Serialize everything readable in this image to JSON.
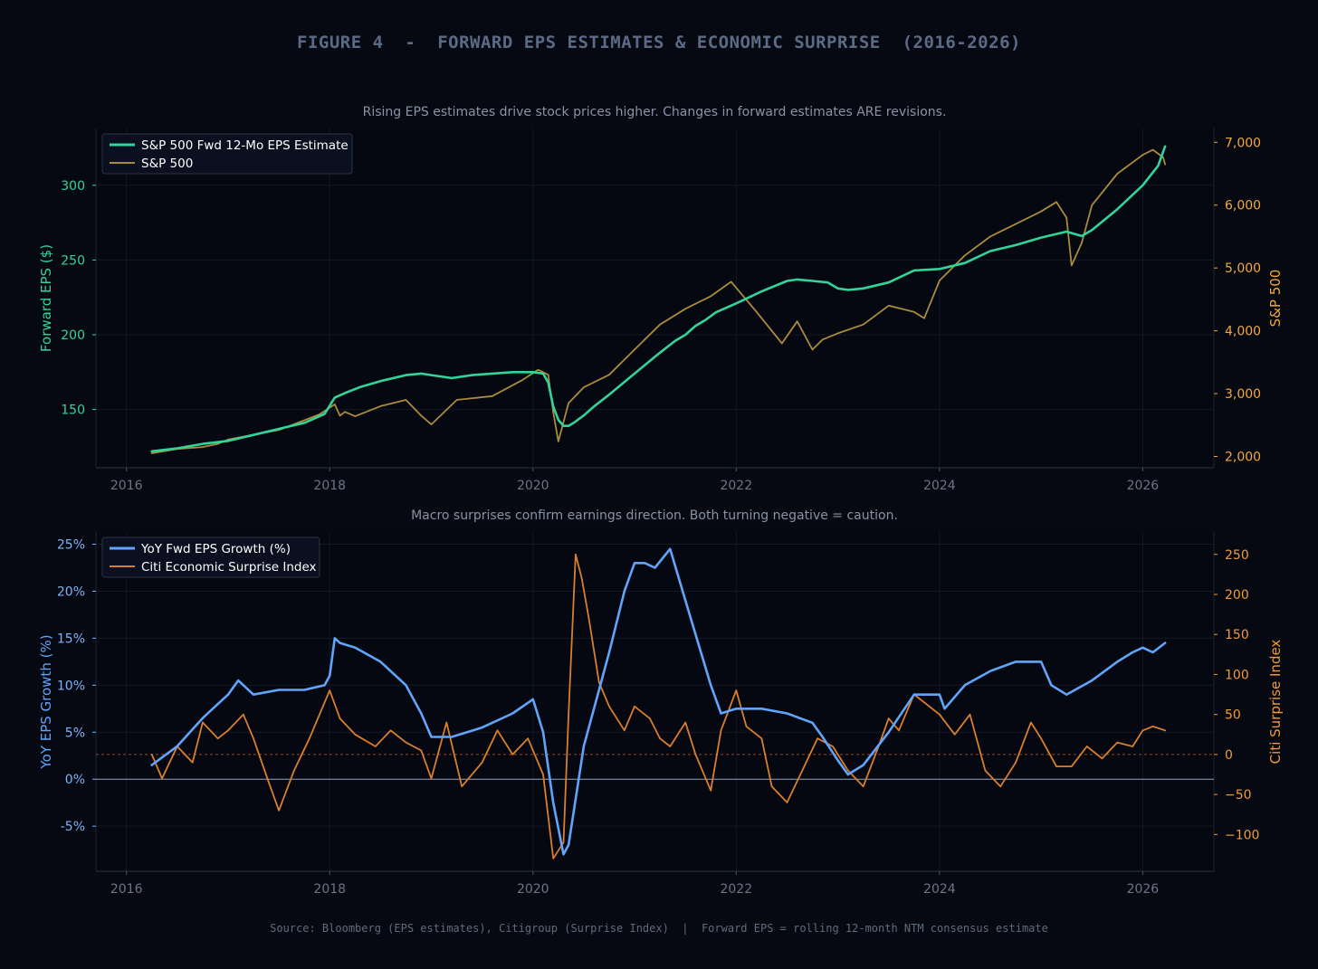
{
  "figure": {
    "title": "FIGURE 4  -  FORWARD EPS ESTIMATES & ECONOMIC SURPRISE  (2016-2026)",
    "footer": "Source: Bloomberg (EPS estimates), Citigroup (Surprise Index)  |  Forward EPS = rolling 12-month NTM consensus estimate",
    "background": "#060912"
  },
  "chart_data": [
    {
      "type": "line",
      "title": "Rising EPS estimates drive stock prices higher. Changes in forward estimates ARE revisions.",
      "xlabel": "",
      "xlim": [
        2015.7,
        2026.7
      ],
      "x_ticks": [
        2016,
        2018,
        2020,
        2022,
        2024,
        2026
      ],
      "x_tick_labels": [
        "2016",
        "2018",
        "2020",
        "2022",
        "2024",
        "2026"
      ],
      "ylabel_left": "Forward EPS ($)",
      "ylim_left": [
        111,
        338
      ],
      "y_ticks_left": [
        150,
        200,
        250,
        300
      ],
      "y_tick_labels_left": [
        "150",
        "200",
        "250",
        "300"
      ],
      "ylabel_right": "S&P 500",
      "ylim_right": [
        1820,
        7220
      ],
      "y_ticks_right": [
        2000,
        3000,
        4000,
        5000,
        6000,
        7000
      ],
      "y_tick_labels_right": [
        "2,000",
        "3,000",
        "4,000",
        "5,000",
        "6,000",
        "7,000"
      ],
      "legend_position": "top-left",
      "grid": true,
      "series": [
        {
          "name": "S&P 500 Fwd 12-Mo EPS Estimate",
          "axis": "left",
          "color": "#34d399",
          "x": [
            2016.25,
            2016.5,
            2016.75,
            2017.0,
            2017.25,
            2017.5,
            2017.75,
            2017.95,
            2018.05,
            2018.15,
            2018.3,
            2018.5,
            2018.75,
            2018.9,
            2019.0,
            2019.2,
            2019.4,
            2019.6,
            2019.8,
            2020.0,
            2020.1,
            2020.15,
            2020.2,
            2020.25,
            2020.3,
            2020.35,
            2020.4,
            2020.5,
            2020.6,
            2020.75,
            2021.0,
            2021.25,
            2021.4,
            2021.5,
            2021.6,
            2021.7,
            2021.8,
            2022.0,
            2022.25,
            2022.5,
            2022.6,
            2022.75,
            2022.9,
            2023.0,
            2023.1,
            2023.25,
            2023.5,
            2023.75,
            2024.0,
            2024.25,
            2024.5,
            2024.75,
            2025.0,
            2025.25,
            2025.4,
            2025.5,
            2025.75,
            2026.0,
            2026.15,
            2026.22
          ],
          "y": [
            122,
            124,
            127,
            129,
            133,
            137,
            141,
            147,
            158,
            161,
            165,
            169,
            173,
            174,
            173,
            171,
            173,
            174,
            175,
            175,
            174,
            168,
            152,
            143,
            139,
            139,
            141,
            146,
            152,
            160,
            174,
            188,
            196,
            200,
            206,
            210,
            215,
            221,
            229,
            236,
            237,
            236,
            235,
            231,
            230,
            231,
            235,
            243,
            244,
            248,
            256,
            260,
            265,
            269,
            266,
            270,
            284,
            300,
            313,
            326
          ]
        },
        {
          "name": "S&P 500",
          "axis": "right",
          "color": "#a98b3d",
          "x": [
            2016.25,
            2016.5,
            2016.75,
            2016.9,
            2017.0,
            2017.5,
            2017.9,
            2018.05,
            2018.1,
            2018.15,
            2018.25,
            2018.5,
            2018.75,
            2018.9,
            2019.0,
            2019.25,
            2019.6,
            2019.9,
            2020.05,
            2020.15,
            2020.2,
            2020.25,
            2020.35,
            2020.5,
            2020.75,
            2021.0,
            2021.25,
            2021.5,
            2021.75,
            2021.95,
            2022.2,
            2022.45,
            2022.6,
            2022.75,
            2022.85,
            2023.0,
            2023.25,
            2023.5,
            2023.75,
            2023.85,
            2024.0,
            2024.25,
            2024.5,
            2024.75,
            2025.0,
            2025.15,
            2025.25,
            2025.3,
            2025.4,
            2025.5,
            2025.75,
            2026.0,
            2026.1,
            2026.2,
            2026.22
          ],
          "y": [
            2050,
            2120,
            2150,
            2200,
            2270,
            2420,
            2670,
            2830,
            2650,
            2710,
            2640,
            2800,
            2900,
            2650,
            2510,
            2900,
            2960,
            3220,
            3380,
            3300,
            2700,
            2240,
            2850,
            3100,
            3300,
            3700,
            4100,
            4350,
            4550,
            4780,
            4300,
            3800,
            4150,
            3700,
            3860,
            3960,
            4100,
            4400,
            4300,
            4200,
            4800,
            5200,
            5500,
            5700,
            5900,
            6050,
            5800,
            5040,
            5400,
            6000,
            6500,
            6800,
            6880,
            6760,
            6650
          ]
        }
      ]
    },
    {
      "type": "line",
      "title": "Macro surprises confirm earnings direction. Both turning negative = caution.",
      "xlabel": "",
      "xlim": [
        2015.7,
        2026.7
      ],
      "x_ticks": [
        2016,
        2018,
        2020,
        2022,
        2024,
        2026
      ],
      "x_tick_labels": [
        "2016",
        "2018",
        "2020",
        "2022",
        "2024",
        "2026"
      ],
      "ylabel_left": "YoY EPS Growth (%)",
      "ylim_left": [
        -9.8,
        26.3
      ],
      "y_ticks_left": [
        -5,
        0,
        5,
        10,
        15,
        20,
        25
      ],
      "y_tick_labels_left": [
        "-5%",
        "0%",
        "5%",
        "10%",
        "15%",
        "20%",
        "25%"
      ],
      "ylabel_right": "Citi Surprise Index",
      "ylim_right": [
        -146,
        278
      ],
      "y_ticks_right": [
        -100,
        -50,
        0,
        50,
        100,
        150,
        200,
        250
      ],
      "y_tick_labels_right": [
        "−100",
        "−50",
        "0",
        "50",
        "100",
        "150",
        "200",
        "250"
      ],
      "reference_lines": [
        {
          "axis": "left",
          "value": 0,
          "color": "#8ea2c0"
        },
        {
          "axis": "right",
          "value": 0,
          "color": "#9a4a25",
          "style": "dashed"
        }
      ],
      "legend_position": "top-left",
      "grid": true,
      "series": [
        {
          "name": "YoY Fwd EPS Growth (%)",
          "axis": "left",
          "color": "#60a5fa",
          "x": [
            2016.25,
            2016.5,
            2016.75,
            2016.9,
            2017.0,
            2017.1,
            2017.25,
            2017.5,
            2017.75,
            2017.95,
            2018.0,
            2018.05,
            2018.1,
            2018.25,
            2018.5,
            2018.75,
            2018.9,
            2019.0,
            2019.2,
            2019.5,
            2019.8,
            2020.0,
            2020.1,
            2020.2,
            2020.3,
            2020.35,
            2020.5,
            2020.75,
            2020.9,
            2021.0,
            2021.1,
            2021.2,
            2021.35,
            2021.5,
            2021.75,
            2021.85,
            2022.0,
            2022.25,
            2022.5,
            2022.75,
            2022.85,
            2023.0,
            2023.1,
            2023.25,
            2023.5,
            2023.75,
            2024.0,
            2024.05,
            2024.25,
            2024.5,
            2024.75,
            2024.9,
            2025.0,
            2025.1,
            2025.25,
            2025.5,
            2025.75,
            2025.9,
            2026.0,
            2026.1,
            2026.22
          ],
          "y": [
            1.5,
            3.5,
            6.5,
            8.0,
            9.0,
            10.5,
            9.0,
            9.5,
            9.5,
            10.0,
            11.0,
            15.0,
            14.5,
            14.0,
            12.5,
            10.0,
            7.0,
            4.5,
            4.5,
            5.5,
            7.0,
            8.5,
            5.0,
            -2.5,
            -8.0,
            -7.0,
            3.5,
            13.5,
            20.0,
            23.0,
            23.0,
            22.5,
            24.5,
            19.0,
            10.0,
            7.0,
            7.5,
            7.5,
            7.0,
            6.0,
            4.5,
            2.0,
            0.5,
            1.5,
            5.0,
            9.0,
            9.0,
            7.5,
            10.0,
            11.5,
            12.5,
            12.5,
            12.5,
            10.0,
            9.0,
            10.5,
            12.5,
            13.5,
            14.0,
            13.5,
            14.5
          ]
        },
        {
          "name": "Citi Economic Surprise Index",
          "axis": "right",
          "color": "#d97e2e",
          "x": [
            2016.25,
            2016.35,
            2016.5,
            2016.65,
            2016.75,
            2016.9,
            2017.0,
            2017.15,
            2017.25,
            2017.4,
            2017.5,
            2017.65,
            2017.8,
            2018.0,
            2018.1,
            2018.25,
            2018.45,
            2018.6,
            2018.75,
            2018.9,
            2019.0,
            2019.15,
            2019.3,
            2019.5,
            2019.65,
            2019.8,
            2019.95,
            2020.1,
            2020.2,
            2020.3,
            2020.35,
            2020.42,
            2020.48,
            2020.55,
            2020.65,
            2020.75,
            2020.9,
            2021.0,
            2021.15,
            2021.25,
            2021.35,
            2021.5,
            2021.6,
            2021.75,
            2021.85,
            2022.0,
            2022.1,
            2022.25,
            2022.35,
            2022.5,
            2022.65,
            2022.8,
            2022.95,
            2023.1,
            2023.25,
            2023.4,
            2023.5,
            2023.6,
            2023.75,
            2023.9,
            2024.0,
            2024.15,
            2024.3,
            2024.45,
            2024.6,
            2024.75,
            2024.9,
            2025.0,
            2025.15,
            2025.3,
            2025.45,
            2025.6,
            2025.75,
            2025.9,
            2026.0,
            2026.1,
            2026.22
          ],
          "y": [
            0,
            -30,
            10,
            -10,
            40,
            20,
            30,
            50,
            20,
            -35,
            -70,
            -20,
            20,
            80,
            45,
            25,
            10,
            30,
            15,
            5,
            -30,
            40,
            -40,
            -10,
            30,
            0,
            20,
            -25,
            -130,
            -110,
            50,
            250,
            220,
            170,
            90,
            60,
            30,
            60,
            45,
            20,
            10,
            40,
            0,
            -45,
            30,
            80,
            35,
            20,
            -40,
            -60,
            -20,
            20,
            10,
            -20,
            -40,
            10,
            45,
            30,
            75,
            60,
            50,
            25,
            50,
            -20,
            -40,
            -10,
            40,
            20,
            -15,
            -15,
            10,
            -5,
            15,
            10,
            30,
            35,
            30
          ]
        }
      ]
    }
  ]
}
